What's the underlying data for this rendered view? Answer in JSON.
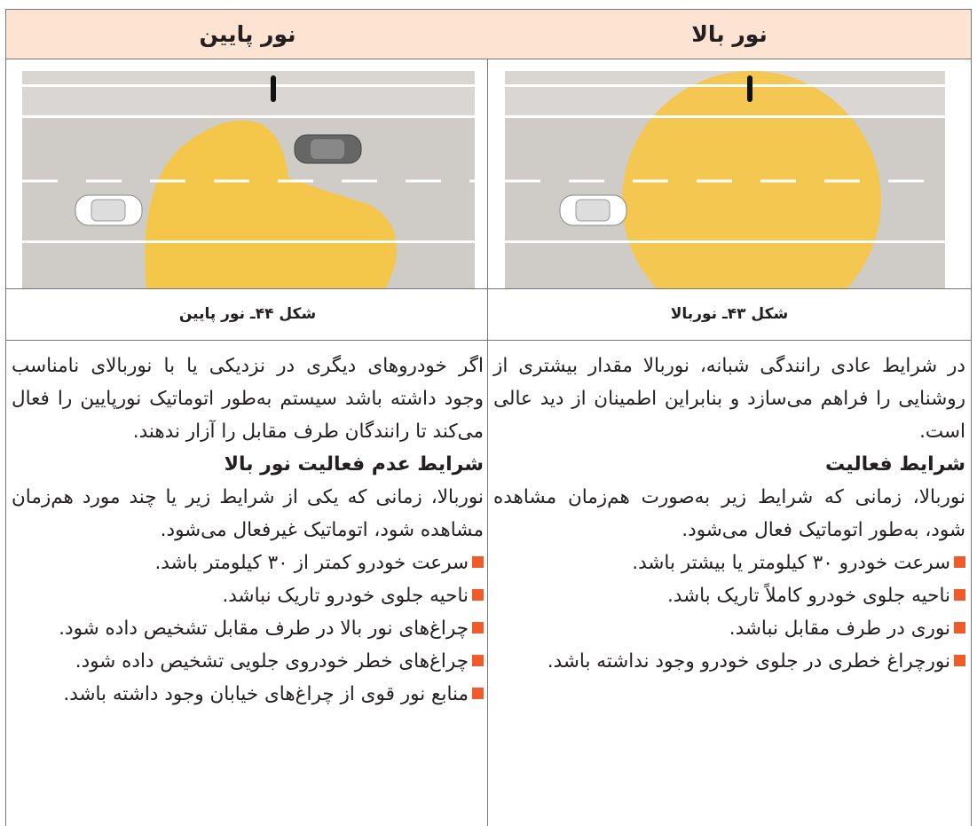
{
  "table": {
    "columns": [
      {
        "header": "نور بالا",
        "caption": "شکل ۴۳ـ نوربالا",
        "intro": "در شرایط عادی رانندگی شبانه، نوربالا مقدار بیشتری از روشنایی را فراهم می‌سازد و بنابراین اطمینان از دید عالی است.",
        "heading": "شرایط فعالیت",
        "body": "نوربالا، زمانی که شرایط زیر به‌صورت هم‌زمان مشاهده شود، به‌طور اتوماتیک فعال می‌شود.",
        "bullets": [
          "سرعت خودرو ۳۰ کیلومتر یا بیشتر باشد.",
          "ناحیه جلوی خودرو کاملاً تاریک باشد.",
          "نوری در طرف مقابل نباشد.",
          "نورچراغ خطری در جلوی خودرو وجود نداشته باشد."
        ]
      },
      {
        "header": "نور پایین",
        "caption": "شکل ۴۴ـ نور پایین",
        "intro": "اگر خودروهای دیگری در نزدیکی یا با نوربالای نامناسب وجود داشته باشد سیستم به‌طور اتوماتیک نورپایین را فعال می‌کند تا رانندگان طرف مقابل را آزار ندهند.",
        "heading": "شرایط عدم فعالیت نور بالا",
        "body": "نوربالا، زمانی که یکی از شرایط زیر یا چند مورد هم‌زمان مشاهده شود، اتوماتیک غیرفعال می‌شود.",
        "bullets": [
          "سرعت خودرو کمتر از ۳۰ کیلومتر باشد.",
          "ناحیه جلوی خودرو تاریک نباشد.",
          "چراغ‌های نور بالا در طرف مقابل تشخیص داده شود.",
          "چراغ‌های خطر خودروی جلویی تشخیص داده شود.",
          "منابع نور قوی از چراغ‌های خیابان وجود داشته باشد."
        ]
      }
    ]
  }
}
